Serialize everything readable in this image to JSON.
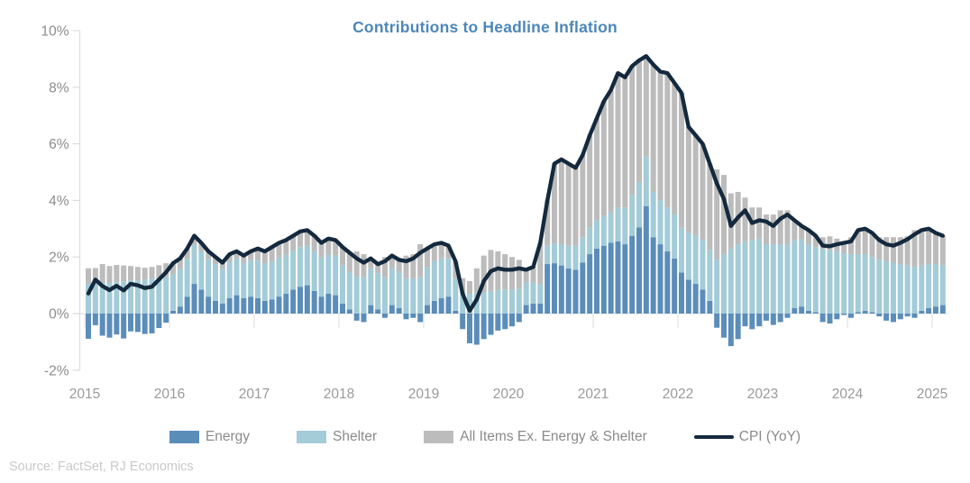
{
  "chart_data": {
    "type": "combo",
    "title": "Contributions to Headline Inflation",
    "title_color": "#4d87b8",
    "source": "Source: FactSet, RJ Economics",
    "start": "2015-01",
    "months": 122,
    "ylim": [
      -2,
      10
    ],
    "grid": false,
    "legend_position": "bottom",
    "axis_color": "#dcdcdc",
    "tick_label_color": "#8c8c8c",
    "year_label_color": "#9a9a9a",
    "y_ticks": [
      {
        "label": "10%",
        "value": 10
      },
      {
        "label": "8%",
        "value": 8
      },
      {
        "label": "6%",
        "value": 6
      },
      {
        "label": "4%",
        "value": 4
      },
      {
        "label": "2%",
        "value": 2
      },
      {
        "label": "0%",
        "value": 0
      },
      {
        "label": "-2%",
        "value": -2
      }
    ],
    "x_ticks": [
      "2015",
      "2016",
      "2017",
      "2018",
      "2019",
      "2020",
      "2021",
      "2022",
      "2023",
      "2024",
      "2025"
    ],
    "series": [
      {
        "name": "Energy",
        "type": "bar",
        "color": "#5b8db9",
        "values": [
          -0.89,
          -0.41,
          -0.78,
          -0.85,
          -0.74,
          -0.88,
          -0.63,
          -0.65,
          -0.72,
          -0.7,
          -0.51,
          -0.32,
          0.1,
          0.25,
          0.6,
          1.05,
          0.85,
          0.6,
          0.45,
          0.35,
          0.55,
          0.65,
          0.55,
          0.6,
          0.55,
          0.45,
          0.5,
          0.6,
          0.7,
          0.85,
          0.95,
          1.0,
          0.8,
          0.6,
          0.7,
          0.65,
          0.35,
          0.15,
          -0.25,
          -0.3,
          0.3,
          0.15,
          -0.15,
          0.3,
          0.2,
          -0.2,
          -0.15,
          -0.3,
          0.3,
          0.45,
          0.55,
          0.6,
          0.1,
          -0.55,
          -1.05,
          -1.1,
          -0.9,
          -0.75,
          -0.6,
          -0.55,
          -0.45,
          -0.3,
          0.3,
          0.35,
          0.35,
          1.75,
          1.78,
          1.7,
          1.6,
          1.55,
          1.8,
          2.1,
          2.3,
          2.4,
          2.5,
          2.55,
          2.45,
          2.75,
          3.05,
          3.8,
          2.7,
          2.45,
          2.2,
          1.95,
          1.45,
          1.2,
          1.05,
          0.85,
          0.45,
          -0.5,
          -0.85,
          -1.15,
          -0.9,
          -0.45,
          -0.55,
          -0.45,
          -0.25,
          -0.4,
          -0.3,
          -0.15,
          0.2,
          0.25,
          0.1,
          0.05,
          -0.3,
          -0.35,
          -0.2,
          -0.05,
          -0.15,
          0.05,
          0.1,
          0.05,
          -0.1,
          -0.25,
          -0.3,
          -0.2,
          -0.1,
          -0.15,
          0.1,
          0.2,
          0.25,
          0.3
        ]
      },
      {
        "name": "Shelter",
        "type": "bar",
        "color": "#a3cbd8",
        "values": [
          1.05,
          1.15,
          1.1,
          1.08,
          1.12,
          1.14,
          1.17,
          1.17,
          1.2,
          1.24,
          1.27,
          1.3,
          1.3,
          1.32,
          1.34,
          1.38,
          1.35,
          1.32,
          1.3,
          1.22,
          1.28,
          1.3,
          1.25,
          1.3,
          1.32,
          1.32,
          1.35,
          1.38,
          1.38,
          1.38,
          1.4,
          1.4,
          1.4,
          1.38,
          1.4,
          1.4,
          1.35,
          1.33,
          1.32,
          1.3,
          1.3,
          1.28,
          1.28,
          1.3,
          1.28,
          1.25,
          1.25,
          1.28,
          1.35,
          1.4,
          1.4,
          1.35,
          1.15,
          0.8,
          0.7,
          0.72,
          0.75,
          0.8,
          0.82,
          0.85,
          0.85,
          0.88,
          0.8,
          0.75,
          0.7,
          0.65,
          0.7,
          0.75,
          0.8,
          0.85,
          0.9,
          0.95,
          1.0,
          1.05,
          1.1,
          1.2,
          1.3,
          1.45,
          1.6,
          1.75,
          1.6,
          1.55,
          1.55,
          1.55,
          1.6,
          1.65,
          1.7,
          1.75,
          1.8,
          1.9,
          2.1,
          2.3,
          2.45,
          2.55,
          2.6,
          2.65,
          2.45,
          2.45,
          2.45,
          2.45,
          2.4,
          2.38,
          2.35,
          2.3,
          2.28,
          2.25,
          2.2,
          2.15,
          2.1,
          2.05,
          2.0,
          1.95,
          1.9,
          1.85,
          1.8,
          1.75,
          1.7,
          1.65,
          1.6,
          1.55,
          1.5,
          1.4
        ]
      },
      {
        "name": "All Items Ex. Energy & Shelter",
        "type": "bar",
        "color": "#bcbcbc",
        "values": [
          0.55,
          0.46,
          0.65,
          0.6,
          0.6,
          0.56,
          0.51,
          0.48,
          0.42,
          0.41,
          0.44,
          0.48,
          0.38,
          0.38,
          0.36,
          0.32,
          0.3,
          0.28,
          0.25,
          0.23,
          0.27,
          0.25,
          0.25,
          0.3,
          0.43,
          0.43,
          0.5,
          0.52,
          0.52,
          0.52,
          0.55,
          0.55,
          0.55,
          0.52,
          0.55,
          0.55,
          0.65,
          0.67,
          0.88,
          0.8,
          0.35,
          0.32,
          0.72,
          0.45,
          0.42,
          0.8,
          0.85,
          1.17,
          0.65,
          0.6,
          0.55,
          0.45,
          0.6,
          0.45,
          0.45,
          0.88,
          1.3,
          1.45,
          1.38,
          1.25,
          1.15,
          1.02,
          0.45,
          0.55,
          1.45,
          1.6,
          2.82,
          3.0,
          2.9,
          2.75,
          2.9,
          3.25,
          3.6,
          4.05,
          4.3,
          4.75,
          4.6,
          4.55,
          4.3,
          3.55,
          4.5,
          4.55,
          4.75,
          4.65,
          4.75,
          3.75,
          3.55,
          3.4,
          3.05,
          3.2,
          2.8,
          1.95,
          1.85,
          1.55,
          1.15,
          1.1,
          1.05,
          1.05,
          1.2,
          1.2,
          0.7,
          0.47,
          0.5,
          0.4,
          0.42,
          0.48,
          0.45,
          0.4,
          0.6,
          0.85,
          0.9,
          0.85,
          0.8,
          0.85,
          0.9,
          0.95,
          1.03,
          1.3,
          1.25,
          1.25,
          1.1,
          1.05
        ]
      },
      {
        "name": "CPI (YoY)",
        "type": "line",
        "color": "#14293d",
        "values": [
          0.71,
          1.2,
          0.97,
          0.83,
          0.98,
          0.82,
          1.05,
          1.0,
          0.9,
          0.95,
          1.2,
          1.46,
          1.78,
          1.95,
          2.3,
          2.75,
          2.5,
          2.2,
          2.0,
          1.8,
          2.1,
          2.2,
          2.05,
          2.2,
          2.3,
          2.2,
          2.35,
          2.5,
          2.6,
          2.75,
          2.9,
          2.95,
          2.75,
          2.5,
          2.65,
          2.6,
          2.35,
          2.15,
          1.95,
          1.8,
          1.95,
          1.75,
          1.85,
          2.05,
          1.9,
          1.85,
          1.95,
          2.15,
          2.3,
          2.45,
          2.5,
          2.4,
          1.85,
          0.7,
          0.1,
          0.5,
          1.15,
          1.5,
          1.6,
          1.55,
          1.55,
          1.6,
          1.55,
          1.65,
          2.5,
          4.0,
          5.3,
          5.45,
          5.3,
          5.15,
          5.6,
          6.3,
          6.9,
          7.5,
          7.9,
          8.5,
          8.35,
          8.75,
          8.95,
          9.1,
          8.8,
          8.55,
          8.5,
          8.15,
          7.8,
          6.6,
          6.3,
          6.0,
          5.3,
          4.6,
          4.05,
          3.1,
          3.4,
          3.65,
          3.2,
          3.3,
          3.25,
          3.1,
          3.35,
          3.5,
          3.3,
          3.1,
          2.95,
          2.75,
          2.4,
          2.38,
          2.45,
          2.5,
          2.55,
          2.95,
          3.0,
          2.85,
          2.6,
          2.45,
          2.4,
          2.5,
          2.63,
          2.8,
          2.95,
          3.0,
          2.85,
          2.75
        ]
      }
    ]
  }
}
